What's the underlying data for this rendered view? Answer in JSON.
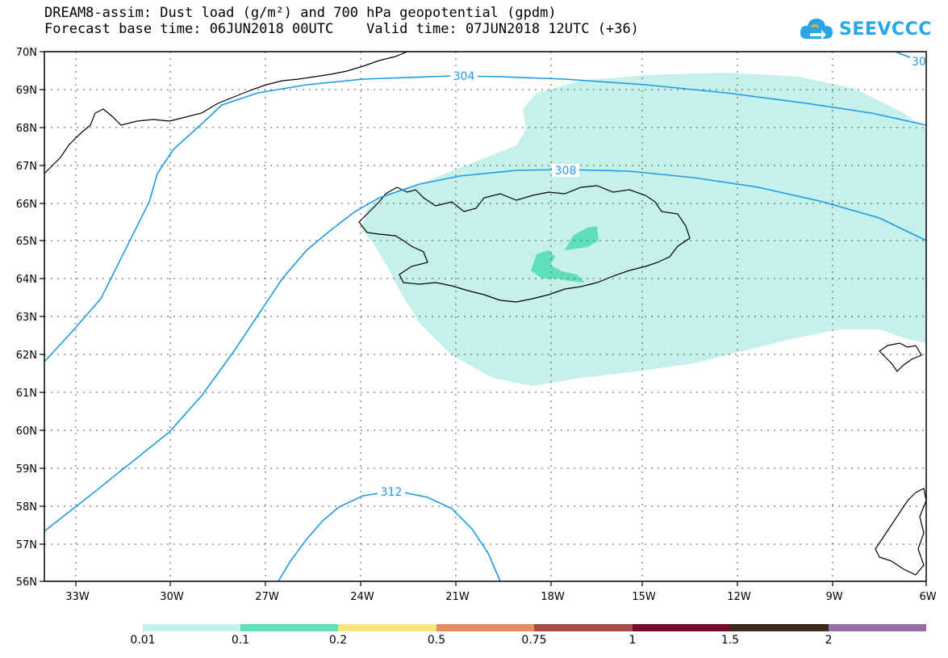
{
  "title": {
    "line1": "DREAM8-assim: Dust load (g/m²) and 700 hPa geopotential (gpdm)",
    "line2": "Forecast base time: 06JUN2018 00UTC    Valid time: 07JUN2018 12UTC (+36)"
  },
  "logo": {
    "text": "SEEVCCC",
    "icon": "cloud-icon",
    "color": "#29a6e6"
  },
  "map": {
    "lat_labels": [
      "70N",
      "69N",
      "68N",
      "67N",
      "66N",
      "65N",
      "64N",
      "63N",
      "62N",
      "61N",
      "60N",
      "59N",
      "58N",
      "57N",
      "56N"
    ],
    "lon_labels": [
      "33W",
      "30W",
      "27W",
      "24W",
      "21W",
      "18W",
      "15W",
      "12W",
      "9W",
      "6W"
    ],
    "contours": [
      {
        "label": "304",
        "label2": "30",
        "color": "#1e9be6"
      },
      {
        "label": "308",
        "color": "#1e9be6"
      },
      {
        "label": "312",
        "color": "#1e9be6"
      }
    ],
    "dust_fill_colors": [
      "#c6f0ea",
      "#5fe0b8"
    ]
  },
  "colorbar": {
    "colors": [
      "#c6f0ea",
      "#5fe0b8",
      "#f6e67a",
      "#e98c62",
      "#a64a46",
      "#7a0a2a",
      "#3e2a1a",
      "#9a6ea6"
    ],
    "labels": [
      "0.01",
      "0.1",
      "0.2",
      "0.5",
      "0.75",
      "1",
      "1.5",
      "2"
    ]
  }
}
